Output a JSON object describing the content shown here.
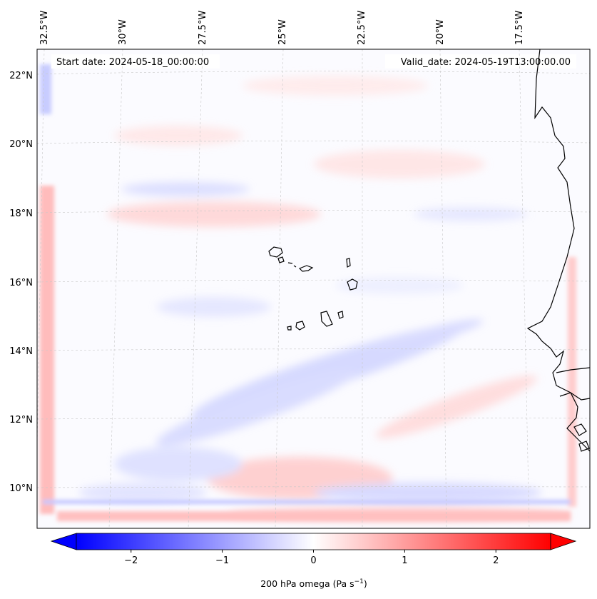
{
  "map": {
    "start_date": "Start date: 2024-05-18_00:00:00",
    "valid_date": "Valid_date: 2024-05-19T13:00:00.00",
    "longitude_labels": [
      "32.5°W",
      "30°W",
      "27.5°W",
      "25°W",
      "22.5°W",
      "20°W",
      "17.5°W"
    ],
    "latitude_labels": [
      "22°N",
      "20°N",
      "18°N",
      "16°N",
      "14°N",
      "12°N",
      "10°N"
    ],
    "colormap": "bwr",
    "colors": {
      "negative": "#0000ff",
      "zero": "#ffffff",
      "positive": "#ff0000",
      "coastline": "#000000",
      "gridline": "#c8c8c8"
    }
  },
  "colorbar": {
    "ticks": [
      "−2",
      "−1",
      "0",
      "1",
      "2"
    ],
    "tick_values": [
      -2,
      -1,
      0,
      1,
      2
    ],
    "range": [
      -2.6,
      2.6
    ],
    "label_main": "200 hPa omega (Pa s",
    "label_exp": "−1",
    "label_close": ")"
  }
}
